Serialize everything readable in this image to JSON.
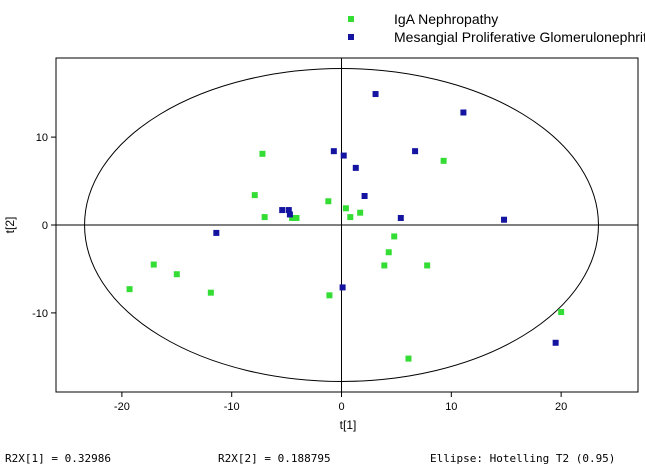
{
  "chart_data": {
    "type": "scatter",
    "title": "",
    "xlabel": "t[1]",
    "ylabel": "t[2]",
    "xlim": [
      -26,
      27
    ],
    "ylim": [
      -19,
      19
    ],
    "xticks": [
      -20,
      -10,
      0,
      10,
      20
    ],
    "yticks": [
      -10,
      0,
      10
    ],
    "legend_position": "top-right",
    "series": [
      {
        "name": "IgA Nephropathy",
        "color": "#33dd33",
        "points": [
          [
            -19.3,
            -7.3
          ],
          [
            -17.1,
            -4.5
          ],
          [
            -15.0,
            -5.6
          ],
          [
            -11.9,
            -7.7
          ],
          [
            -7.9,
            3.4
          ],
          [
            -7.2,
            8.1
          ],
          [
            -7.0,
            0.9
          ],
          [
            -4.5,
            0.8
          ],
          [
            -4.1,
            0.8
          ],
          [
            -1.2,
            2.7
          ],
          [
            -1.1,
            -8.0
          ],
          [
            0.4,
            1.9
          ],
          [
            0.8,
            0.9
          ],
          [
            1.7,
            1.4
          ],
          [
            3.9,
            -4.6
          ],
          [
            4.3,
            -3.1
          ],
          [
            4.8,
            -1.3
          ],
          [
            6.1,
            -15.2
          ],
          [
            7.8,
            -4.6
          ],
          [
            9.3,
            7.3
          ],
          [
            20.0,
            -9.9
          ]
        ]
      },
      {
        "name": "Mesangial Proliferative Glomerulonephritis",
        "color": "#1414a0",
        "points": [
          [
            -11.4,
            -0.9
          ],
          [
            -5.4,
            1.7
          ],
          [
            -4.8,
            1.7
          ],
          [
            -4.7,
            1.2
          ],
          [
            -0.7,
            8.4
          ],
          [
            0.1,
            -7.1
          ],
          [
            0.2,
            7.9
          ],
          [
            1.3,
            6.5
          ],
          [
            2.1,
            3.3
          ],
          [
            3.1,
            14.9
          ],
          [
            5.4,
            0.8
          ],
          [
            6.7,
            8.4
          ],
          [
            11.1,
            12.8
          ],
          [
            14.8,
            0.6
          ],
          [
            19.5,
            -13.4
          ]
        ]
      }
    ],
    "ellipse": {
      "center": [
        0,
        0
      ],
      "rx": 23.4,
      "ry": 17.8
    }
  },
  "footer": {
    "r2x1": "R2X[1] = 0.32986",
    "r2x2": "R2X[2] = 0.188795",
    "ellipse_note": "Ellipse: Hotelling T2 (0.95)"
  }
}
